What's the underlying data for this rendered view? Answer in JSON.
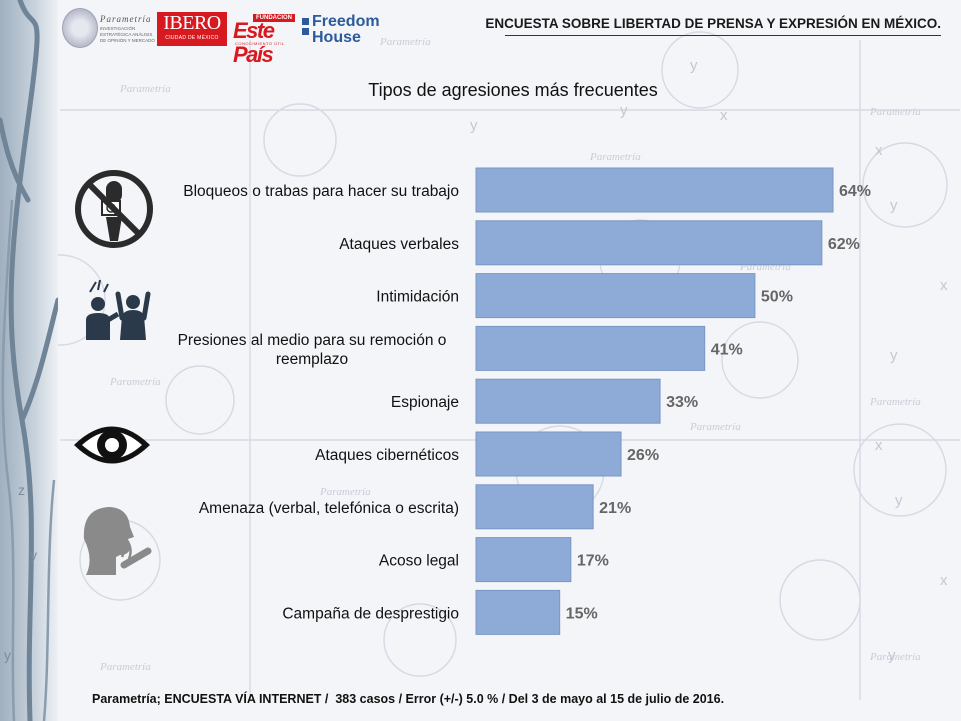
{
  "header": {
    "title": "ENCUESTA SOBRE LIBERTAD DE PRENSA Y EXPRESIÓN EN MÉXICO.",
    "logos": {
      "parametria_name": "Parametría",
      "parametria_tagline": "INVESTIGACIÓN ESTRATÉGICA ANÁLISIS DE OPINIÓN Y MERCADO",
      "ibero_name": "IBERO",
      "ibero_sub": "CIUDAD DE MÉXICO",
      "estepais_fundacion": "FUNDACIÓN",
      "estepais_name": "Este País",
      "estepais_sub": "CONOCIMIENTO ÚTIL",
      "freedom_line1": "Freedom",
      "freedom_line2": "House"
    }
  },
  "icons": [
    "no-microphone-icon",
    "confrontation-icon",
    "eye-icon",
    "whispering-person-icon"
  ],
  "colors": {
    "bar": "#8eaad6",
    "bar_border": "#7a96c3",
    "value_label": "#666666"
  },
  "chart_data": {
    "type": "bar",
    "orientation": "horizontal",
    "title": "Tipos de agresiones más frecuentes",
    "categories": [
      [
        "Bloqueos o trabas para hacer su trabajo"
      ],
      [
        "Ataques verbales"
      ],
      [
        "Intimidación"
      ],
      [
        "Presiones al medio para su remoción o",
        "reemplazo"
      ],
      [
        "Espionaje"
      ],
      [
        "Ataques cibernéticos"
      ],
      [
        "Amenaza (verbal, telefónica o escrita)"
      ],
      [
        "Acoso legal"
      ],
      [
        "Campaña de desprestigio"
      ]
    ],
    "values": [
      64,
      62,
      50,
      41,
      33,
      26,
      21,
      17,
      15
    ],
    "value_labels": [
      "64%",
      "62%",
      "50%",
      "41%",
      "33%",
      "26%",
      "21%",
      "17%",
      "15%"
    ],
    "unit": "%",
    "xlim": [
      0,
      64
    ],
    "grid": false,
    "legend": "none"
  },
  "footer": {
    "note": "Parametría; ENCUESTA VÍA INTERNET /  383 casos / Error (+/-) 5.0 % / Del 3 de mayo al 15 de julio de 2016."
  }
}
